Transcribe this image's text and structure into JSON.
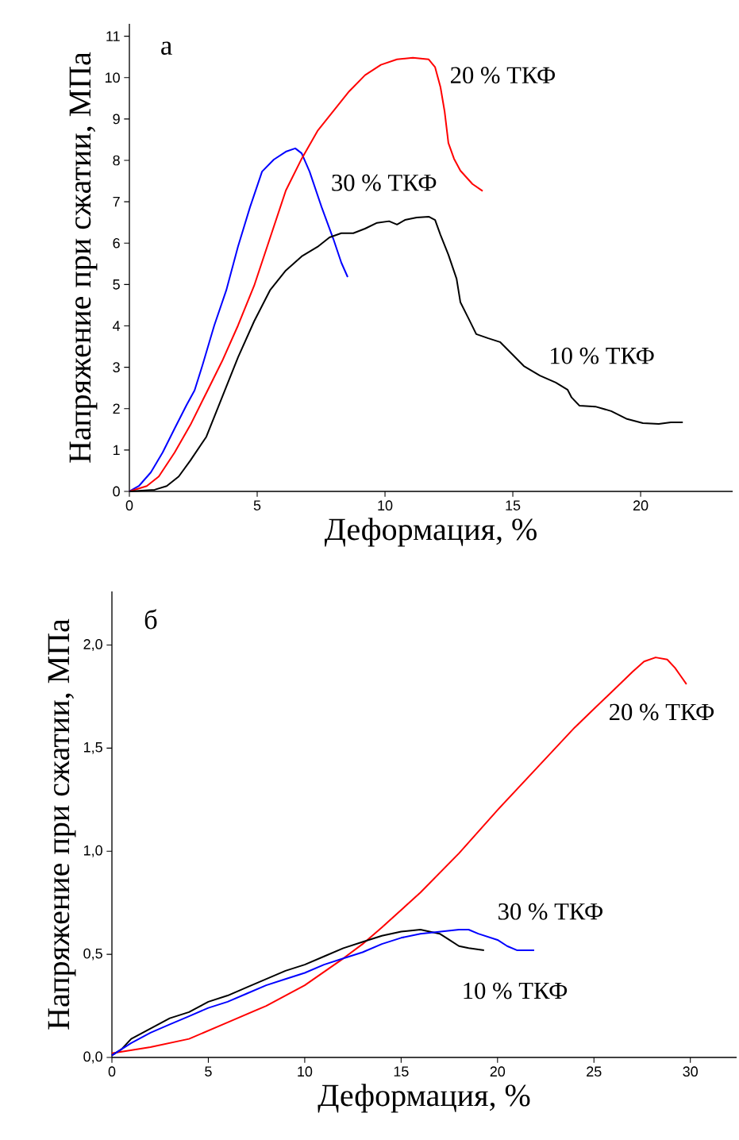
{
  "chart_data": [
    {
      "type": "line",
      "xlabel": "Деформация, %",
      "ylabel": "Напряжение при сжатии, МПа",
      "xlim": [
        0,
        23.6
      ],
      "ylim": [
        0,
        11.3
      ],
      "xticks": [
        0,
        5,
        10,
        15,
        20
      ],
      "yticks": [
        0,
        1,
        2,
        3,
        4,
        5,
        6,
        7,
        8,
        9,
        10,
        11
      ],
      "annotations": [
        "а"
      ],
      "series": [
        {
          "name": "30 % ТКФ",
          "color": "#0000ff",
          "x": [
            0,
            0.37,
            0.84,
            1.3,
            1.77,
            2.24,
            2.55,
            2.86,
            3.32,
            3.79,
            4.25,
            4.72,
            5.19,
            5.65,
            6.12,
            6.49,
            6.74,
            7.05,
            7.52,
            7.98,
            8.29,
            8.54
          ],
          "values": [
            0,
            0.13,
            0.46,
            0.94,
            1.52,
            2.09,
            2.44,
            3.05,
            4.01,
            4.86,
            5.92,
            6.87,
            7.73,
            8.02,
            8.21,
            8.29,
            8.17,
            7.73,
            6.87,
            6.1,
            5.53,
            5.18
          ]
        },
        {
          "name": "20 %  ТКФ",
          "color": "#ff0000",
          "x": [
            0,
            0.68,
            1.15,
            1.77,
            2.39,
            3.01,
            3.63,
            4.25,
            4.88,
            5.5,
            6.12,
            6.74,
            7.36,
            7.98,
            8.6,
            9.22,
            9.84,
            10.47,
            11.09,
            11.71,
            11.96,
            12.17,
            12.33,
            12.48,
            12.7,
            12.95,
            13.42,
            13.82
          ],
          "values": [
            0,
            0.13,
            0.36,
            0.94,
            1.61,
            2.38,
            3.15,
            4.01,
            4.97,
            6.12,
            7.27,
            8.04,
            8.71,
            9.19,
            9.67,
            10.06,
            10.31,
            10.44,
            10.48,
            10.44,
            10.25,
            9.77,
            9.19,
            8.42,
            8.04,
            7.75,
            7.43,
            7.26
          ]
        },
        {
          "name": "10 %  ТКФ",
          "color": "#000000",
          "x": [
            0,
            0.99,
            1.46,
            1.93,
            2.39,
            3.01,
            3.63,
            4.25,
            4.88,
            5.5,
            6.12,
            6.74,
            7.36,
            7.83,
            8.29,
            8.76,
            9.22,
            9.69,
            10.16,
            10.47,
            10.78,
            11.24,
            11.71,
            11.96,
            12.17,
            12.48,
            12.8,
            12.95,
            13.26,
            13.57,
            14.04,
            14.5,
            14.97,
            15.43,
            16.06,
            16.68,
            17.14,
            17.3,
            17.61,
            18.23,
            18.85,
            19.47,
            20.09,
            20.71,
            21.18,
            21.65
          ],
          "values": [
            0,
            0.04,
            0.13,
            0.36,
            0.75,
            1.32,
            2.28,
            3.24,
            4.11,
            4.86,
            5.34,
            5.68,
            5.91,
            6.14,
            6.24,
            6.24,
            6.35,
            6.49,
            6.53,
            6.45,
            6.56,
            6.62,
            6.64,
            6.56,
            6.2,
            5.72,
            5.14,
            4.57,
            4.19,
            3.8,
            3.7,
            3.61,
            3.32,
            3.03,
            2.8,
            2.63,
            2.46,
            2.27,
            2.07,
            2.05,
            1.94,
            1.75,
            1.65,
            1.63,
            1.67,
            1.67
          ]
        }
      ]
    },
    {
      "type": "line",
      "xlabel": "Деформация, %",
      "ylabel": "Напряжение при сжатии, МПа",
      "xlim": [
        0,
        32.4
      ],
      "ylim": [
        0,
        2.26
      ],
      "xticks": [
        0,
        5,
        10,
        15,
        20,
        25,
        30
      ],
      "yticks": [
        {
          "value": 0,
          "label": "0,0"
        },
        {
          "value": 0.5,
          "label": "0,5"
        },
        {
          "value": 1,
          "label": "1,0"
        },
        {
          "value": 1.5,
          "label": "1,5"
        },
        {
          "value": 2,
          "label": "2,0"
        }
      ],
      "annotations": [
        "б"
      ],
      "series": [
        {
          "name": "20 %  ТКФ",
          "color": "#ff0000",
          "x": [
            0,
            2,
            4,
            6,
            8,
            10,
            12,
            13,
            14,
            16,
            18,
            20,
            22,
            24,
            25,
            26,
            27,
            27.6,
            28.2,
            28.8,
            29.2,
            29.5,
            29.8
          ],
          "values": [
            0.02,
            0.05,
            0.09,
            0.17,
            0.25,
            0.35,
            0.48,
            0.55,
            0.63,
            0.8,
            0.99,
            1.2,
            1.4,
            1.6,
            1.69,
            1.78,
            1.87,
            1.92,
            1.94,
            1.93,
            1.89,
            1.85,
            1.81
          ]
        },
        {
          "name": "10 %  ТКФ",
          "color": "#000000",
          "x": [
            0,
            0.5,
            1,
            2,
            3,
            4,
            5,
            6,
            7,
            8,
            9,
            10,
            11,
            12,
            13,
            14,
            15,
            16,
            16.5,
            17,
            17.5,
            18,
            18.5,
            19.3
          ],
          "values": [
            0.01,
            0.04,
            0.09,
            0.14,
            0.19,
            0.22,
            0.27,
            0.3,
            0.34,
            0.38,
            0.42,
            0.45,
            0.49,
            0.53,
            0.56,
            0.59,
            0.61,
            0.62,
            0.61,
            0.6,
            0.57,
            0.54,
            0.53,
            0.52
          ]
        },
        {
          "name": "30 % ТКФ",
          "color": "#0000ff",
          "x": [
            0,
            1,
            2,
            3,
            4,
            5,
            6,
            7,
            8,
            9,
            10,
            11,
            12,
            13,
            14,
            15,
            16,
            17,
            18,
            18.5,
            19,
            20,
            20.5,
            21,
            21.9
          ],
          "values": [
            0.01,
            0.07,
            0.12,
            0.16,
            0.2,
            0.24,
            0.27,
            0.31,
            0.35,
            0.38,
            0.41,
            0.45,
            0.48,
            0.51,
            0.55,
            0.58,
            0.6,
            0.61,
            0.62,
            0.62,
            0.6,
            0.57,
            0.54,
            0.52,
            0.52
          ]
        }
      ]
    }
  ]
}
